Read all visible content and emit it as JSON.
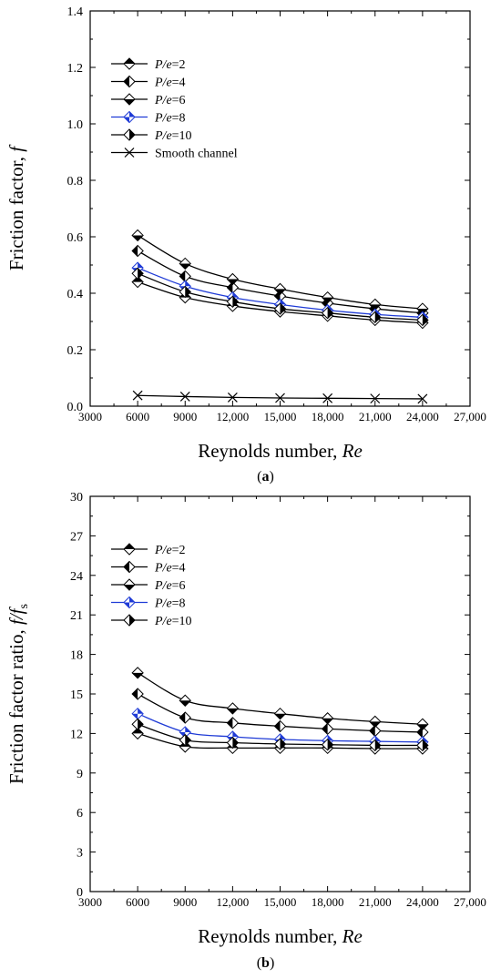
{
  "colors": {
    "axis": "#000000",
    "highlight": "#1f3bd6"
  },
  "chart_data": [
    {
      "type": "line",
      "panel_label": "(a)",
      "panel_letter": "a",
      "xlabel": "Reynolds number, ",
      "xlabel_italic": "Re",
      "ylabel": "Friction factor, ",
      "ylabel_italic": "f",
      "xlim": [
        3000,
        27000
      ],
      "ylim": [
        0,
        1.4
      ],
      "xticks": [
        3000,
        6000,
        9000,
        12000,
        15000,
        18000,
        21000,
        24000,
        27000
      ],
      "xtick_labels": [
        "3000",
        "6000",
        "9000",
        "12,000",
        "15,000",
        "18,000",
        "21,000",
        "24,000",
        "27,000"
      ],
      "yticks": [
        0,
        0.2,
        0.4,
        0.6,
        0.8,
        1.0,
        1.2,
        1.4
      ],
      "ytick_labels": [
        "0.0",
        "0.2",
        "0.4",
        "0.6",
        "0.8",
        "1.0",
        "1.2",
        "1.4"
      ],
      "grid": false,
      "legend_position": "top-left",
      "x": [
        6000,
        9000,
        12000,
        15000,
        18000,
        21000,
        24000
      ],
      "series": [
        {
          "name_italic": "P/e",
          "name": "=2",
          "marker": "diamond-top",
          "color": "#000000",
          "values": [
            0.44,
            0.385,
            0.355,
            0.335,
            0.32,
            0.305,
            0.295
          ]
        },
        {
          "name_italic": "P/e",
          "name": "=4",
          "marker": "diamond-left",
          "color": "#000000",
          "values": [
            0.55,
            0.46,
            0.42,
            0.39,
            0.365,
            0.345,
            0.33
          ]
        },
        {
          "name_italic": "P/e",
          "name": "=6",
          "marker": "diamond-bottom",
          "color": "#000000",
          "values": [
            0.605,
            0.505,
            0.45,
            0.415,
            0.385,
            0.36,
            0.345
          ]
        },
        {
          "name_italic": "P/e",
          "name": "=8",
          "marker": "diamond-quad",
          "color": "#1f3bd6",
          "values": [
            0.49,
            0.425,
            0.385,
            0.36,
            0.34,
            0.325,
            0.315
          ]
        },
        {
          "name_italic": "P/e",
          "name": "=10",
          "marker": "diamond-right",
          "color": "#000000",
          "values": [
            0.47,
            0.405,
            0.37,
            0.345,
            0.33,
            0.315,
            0.305
          ]
        },
        {
          "name_italic": "",
          "name": "Smooth channel",
          "marker": "x",
          "color": "#000000",
          "values": [
            0.038,
            0.034,
            0.031,
            0.029,
            0.028,
            0.027,
            0.026
          ]
        }
      ]
    },
    {
      "type": "line",
      "panel_label": "(b)",
      "panel_letter": "b",
      "xlabel": "Reynolds number, ",
      "xlabel_italic": "Re",
      "ylabel": "Friction factor ratio, ",
      "ylabel_italic": "f/f",
      "ylabel_sub": "s",
      "xlim": [
        3000,
        27000
      ],
      "ylim": [
        0,
        30
      ],
      "xticks": [
        3000,
        6000,
        9000,
        12000,
        15000,
        18000,
        21000,
        24000,
        27000
      ],
      "xtick_labels": [
        "3000",
        "6000",
        "9000",
        "12,000",
        "15,000",
        "18,000",
        "21,000",
        "24,000",
        "27,000"
      ],
      "yticks": [
        0,
        3,
        6,
        9,
        12,
        15,
        18,
        21,
        24,
        27,
        30
      ],
      "ytick_labels": [
        "0",
        "3",
        "6",
        "9",
        "12",
        "15",
        "18",
        "21",
        "24",
        "27",
        "30"
      ],
      "grid": false,
      "legend_position": "top-left",
      "x": [
        6000,
        9000,
        12000,
        15000,
        18000,
        21000,
        24000
      ],
      "series": [
        {
          "name_italic": "P/e",
          "name": "=2",
          "marker": "diamond-top",
          "color": "#000000",
          "values": [
            12.0,
            11.0,
            10.9,
            10.9,
            10.9,
            10.85,
            10.85
          ]
        },
        {
          "name_italic": "P/e",
          "name": "=4",
          "marker": "diamond-left",
          "color": "#000000",
          "values": [
            15.0,
            13.2,
            12.8,
            12.55,
            12.35,
            12.2,
            12.1
          ]
        },
        {
          "name_italic": "P/e",
          "name": "=6",
          "marker": "diamond-bottom",
          "color": "#000000",
          "values": [
            16.6,
            14.5,
            13.9,
            13.5,
            13.15,
            12.9,
            12.7
          ]
        },
        {
          "name_italic": "P/e",
          "name": "=8",
          "marker": "diamond-quad",
          "color": "#1f3bd6",
          "values": [
            13.5,
            12.1,
            11.75,
            11.55,
            11.45,
            11.4,
            11.35
          ]
        },
        {
          "name_italic": "P/e",
          "name": "=10",
          "marker": "diamond-right",
          "color": "#000000",
          "values": [
            12.7,
            11.5,
            11.3,
            11.2,
            11.15,
            11.1,
            11.1
          ]
        }
      ]
    }
  ]
}
